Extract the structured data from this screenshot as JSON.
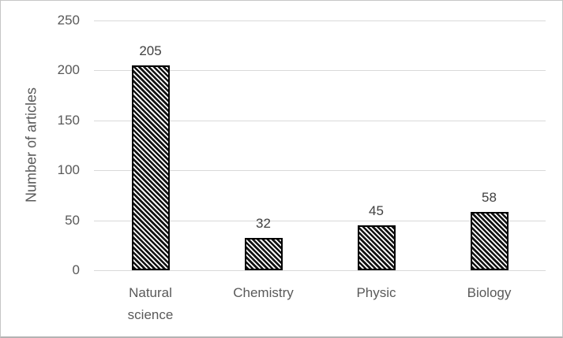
{
  "figure": {
    "background": "#ffffff",
    "border_color": "#c6c6c6"
  },
  "chart_data": {
    "type": "bar",
    "title": "",
    "categories": [
      "Natural science",
      "Chemistry",
      "Physic",
      "Biology"
    ],
    "values": [
      205,
      32,
      45,
      58
    ],
    "data_labels": [
      "205",
      "32",
      "45",
      "58"
    ],
    "xlabel": "",
    "ylabel": "Number of articles",
    "ylim": [
      0,
      250
    ],
    "yticks": [
      0,
      50,
      100,
      150,
      200,
      250
    ],
    "grid": true,
    "legend": "none",
    "bar_fill_style": "diagonal-hatch",
    "bar_hatch_color": "#121212",
    "bar_border_color": "#000000",
    "gridline_color": "#d9d9d9",
    "axis_label_color": "#595959",
    "value_label_color": "#404040"
  }
}
